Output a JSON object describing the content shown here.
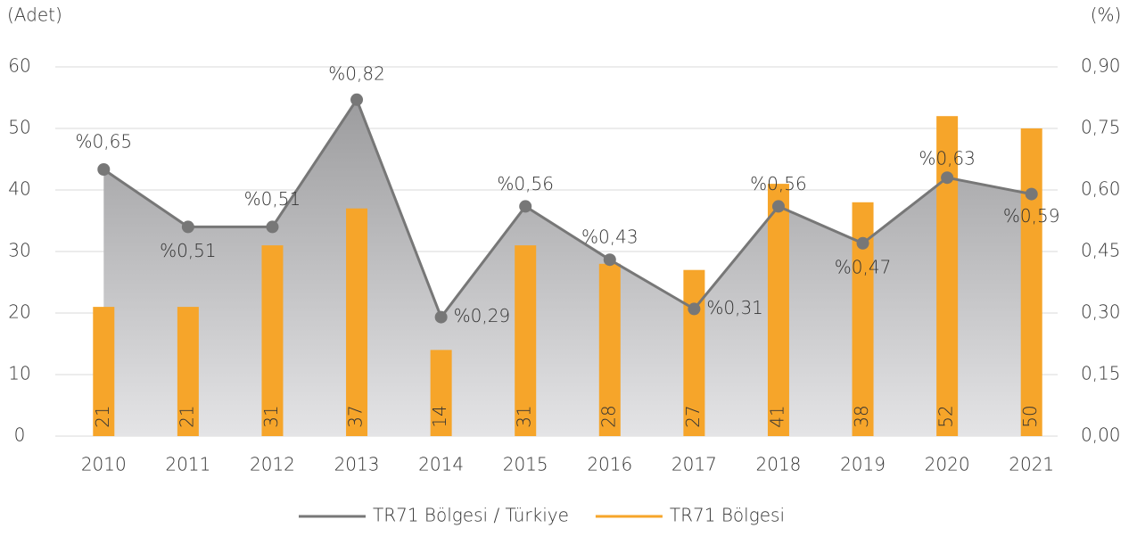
{
  "chart_data": {
    "type": "bar-line",
    "y_label": "(Adet)",
    "y2_label": "(%)",
    "categories": [
      "2010",
      "2011",
      "2012",
      "2013",
      "2014",
      "2015",
      "2016",
      "2017",
      "2018",
      "2019",
      "2020",
      "2021"
    ],
    "series": [
      {
        "name": "TR71 Bölgesi / Türkiye",
        "type": "line",
        "axis": "y2",
        "color": "#777777",
        "values": [
          0.65,
          0.51,
          0.51,
          0.82,
          0.29,
          0.56,
          0.43,
          0.31,
          0.56,
          0.47,
          0.63,
          0.59
        ],
        "value_labels": [
          "%0,65",
          "%0,51",
          "%0,51",
          "%0,82",
          "%0,29",
          "%0,56",
          "%0,43",
          "%0,31",
          "%0,56",
          "%0,47",
          "%0,63",
          "%0,59"
        ]
      },
      {
        "name": "TR71 Bölgesi",
        "type": "bar",
        "color": "#F6A52A",
        "values": [
          21,
          21,
          31,
          37,
          14,
          31,
          28,
          27,
          41,
          38,
          52,
          50
        ]
      }
    ],
    "ylim": [
      0,
      60
    ],
    "yticks": [
      0,
      10,
      20,
      30,
      40,
      50,
      60
    ],
    "y2lim": [
      0,
      0.9
    ],
    "y2ticks": [
      {
        "value": 0,
        "label": "0,00"
      },
      {
        "value": 0.15,
        "label": "0,15"
      },
      {
        "value": 0.3,
        "label": "0,30"
      },
      {
        "value": 0.45,
        "label": "0,45"
      },
      {
        "value": 0.6,
        "label": "0,60"
      },
      {
        "value": 0.75,
        "label": "0,75"
      },
      {
        "value": 0.9,
        "label": "0,90"
      }
    ],
    "grid": true,
    "legend": "bottom"
  }
}
